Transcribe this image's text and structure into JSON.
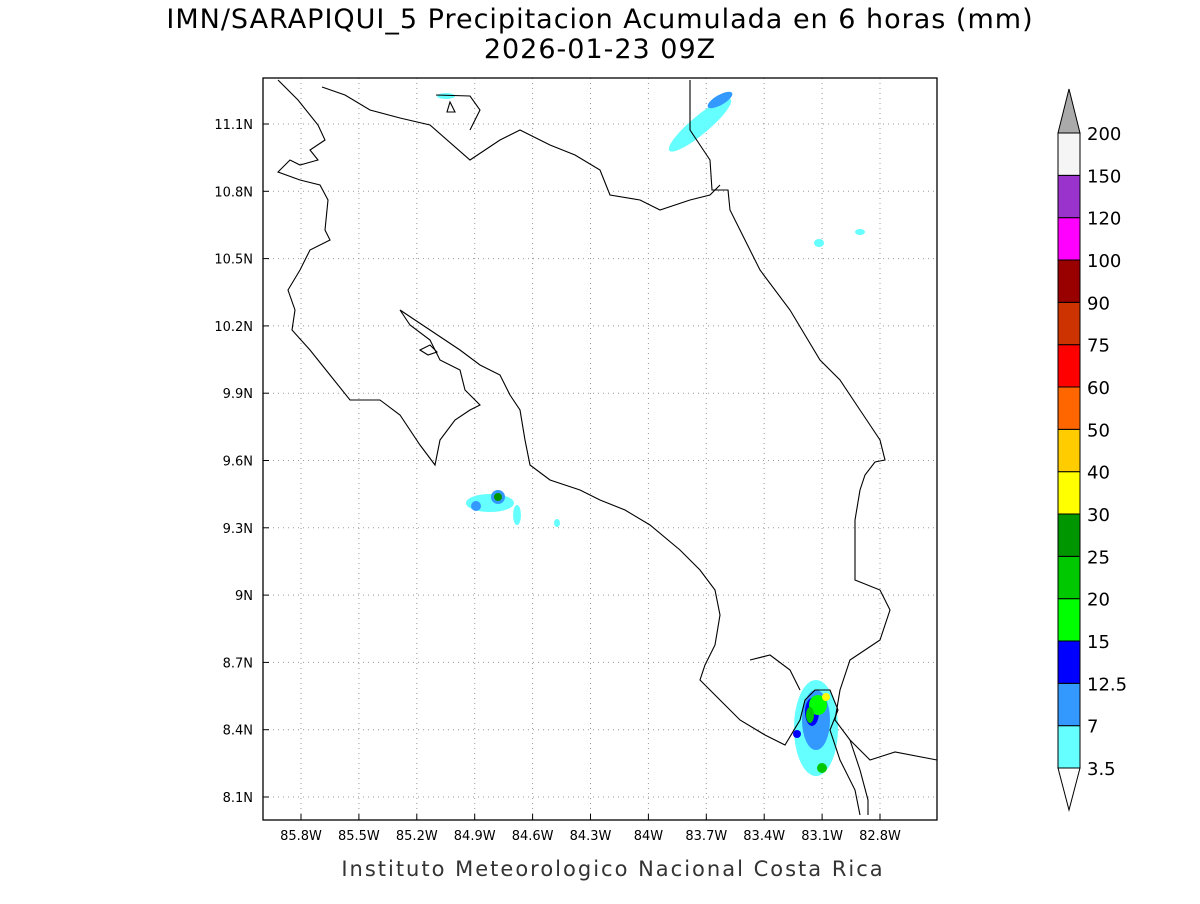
{
  "title": "IMN/SARAPIQUI_5 Precipitacion Acumulada en 6 horas (mm)",
  "subtitle": "2026-01-23 09Z",
  "map": {
    "x_labels": [
      "85.8W",
      "85.5W",
      "85.2W",
      "84.9W",
      "84.6W",
      "84.3W",
      "84W",
      "83.7W",
      "83.4W",
      "83.1W",
      "82.8W"
    ],
    "y_labels": [
      "11.1N",
      "10.8N",
      "10.5N",
      "10.2N",
      "9.9N",
      "9.6N",
      "9.3N",
      "9N",
      "8.7N",
      "8.4N",
      "8.1N"
    ]
  },
  "colorbar": {
    "labels": [
      "3.5",
      "7",
      "12.5",
      "15",
      "20",
      "25",
      "30",
      "40",
      "50",
      "60",
      "75",
      "90",
      "100",
      "120",
      "150",
      "200"
    ],
    "colors": [
      "#66ffff",
      "#3399ff",
      "#0000ff",
      "#00ff00",
      "#00c800",
      "#009600",
      "#ffff00",
      "#ffcc00",
      "#ff6600",
      "#ff0000",
      "#cc3300",
      "#990000",
      "#ff00ff",
      "#9933cc",
      "#f5f5f5"
    ],
    "under_color": "#ffffff",
    "over_color": "#aaaaaa"
  },
  "footer": "Instituto Meteorologico Nacional Costa Rica"
}
